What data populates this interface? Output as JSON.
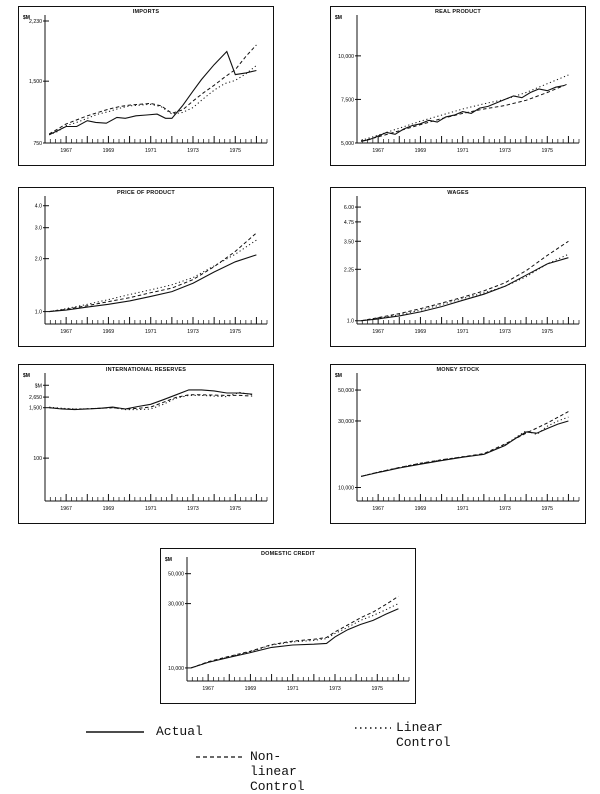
{
  "legend": {
    "actual": "Actual",
    "linear": "Linear Control",
    "nonlinear": "Non-linear Control"
  },
  "chart_data": [
    {
      "id": "imports",
      "type": "line",
      "title": "IMPORTS",
      "unit": "$M",
      "ylim": [
        750,
        2230
      ],
      "yticks": [
        750,
        1500,
        2230
      ],
      "ytick_labels": [
        "750",
        "1,500",
        "2,230"
      ],
      "xlim": [
        1966,
        1976.5
      ],
      "xticks": [
        1967,
        1969,
        1971,
        1973,
        1975
      ],
      "xtick_labels": [
        "1967",
        "1969",
        "1971",
        "1973",
        "1975"
      ],
      "series": [
        {
          "name": "Actual",
          "x": [
            1966.2,
            1966.6,
            1967,
            1967.5,
            1968,
            1968.4,
            1968.9,
            1969.4,
            1969.8,
            1970.3,
            1970.8,
            1971.3,
            1971.7,
            1972,
            1972.5,
            1973,
            1973.4,
            1974,
            1974.6,
            1975,
            1975.5,
            1976
          ],
          "y": [
            850,
            900,
            950,
            950,
            1020,
            1000,
            990,
            1060,
            1050,
            1080,
            1090,
            1100,
            1050,
            1050,
            1200,
            1380,
            1520,
            1700,
            1860,
            1580,
            1600,
            1630
          ]
        },
        {
          "name": "Linear Control",
          "x": [
            1966.2,
            1966.6,
            1967,
            1967.5,
            1968,
            1968.5,
            1969,
            1969.5,
            1970,
            1970.5,
            1971,
            1971.5,
            1972,
            1972.5,
            1973,
            1973.5,
            1974,
            1974.5,
            1975,
            1975.5,
            1976
          ],
          "y": [
            850,
            890,
            960,
            1000,
            1050,
            1100,
            1130,
            1170,
            1200,
            1210,
            1220,
            1190,
            1100,
            1120,
            1180,
            1290,
            1390,
            1470,
            1510,
            1590,
            1690
          ]
        },
        {
          "name": "Non-linear Control",
          "x": [
            1966.2,
            1966.6,
            1967,
            1967.5,
            1968,
            1968.5,
            1969,
            1969.5,
            1970,
            1970.5,
            1971,
            1971.5,
            1972,
            1972.5,
            1973,
            1973.5,
            1974,
            1974.5,
            1975,
            1975.5,
            1976
          ],
          "y": [
            860,
            920,
            980,
            1030,
            1080,
            1120,
            1160,
            1190,
            1210,
            1220,
            1230,
            1200,
            1110,
            1150,
            1260,
            1360,
            1450,
            1550,
            1640,
            1800,
            1940
          ]
        }
      ]
    },
    {
      "id": "real_product",
      "type": "line",
      "title": "REAL PRODUCT",
      "unit": "$M",
      "ylim": [
        5000,
        12000
      ],
      "yticks": [
        5000,
        7500,
        10000
      ],
      "ytick_labels": [
        "5,000",
        "7,500",
        "10,000"
      ],
      "xlim": [
        1966,
        1976.5
      ],
      "xticks": [
        1967,
        1969,
        1971,
        1973,
        1975
      ],
      "xtick_labels": [
        "1967",
        "1969",
        "1971",
        "1973",
        "1975"
      ],
      "series": [
        {
          "name": "Actual",
          "x": [
            1966.2,
            1966.6,
            1967,
            1967.4,
            1967.8,
            1968.2,
            1968.6,
            1969,
            1969.4,
            1969.8,
            1970.2,
            1970.6,
            1971,
            1971.4,
            1971.8,
            1972.2,
            1972.6,
            1973,
            1973.4,
            1973.8,
            1974.2,
            1974.6,
            1975,
            1975.4,
            1975.8
          ],
          "y": [
            5100,
            5200,
            5400,
            5600,
            5500,
            5800,
            6000,
            6100,
            6300,
            6200,
            6500,
            6600,
            6800,
            6700,
            7000,
            7100,
            7300,
            7500,
            7700,
            7600,
            7900,
            8100,
            8000,
            8200,
            8300
          ]
        },
        {
          "name": "Linear Control",
          "x": [
            1966.2,
            1967,
            1968,
            1969,
            1970,
            1971,
            1972,
            1973,
            1974,
            1975,
            1976
          ],
          "y": [
            5150,
            5450,
            5850,
            6250,
            6600,
            6950,
            7250,
            7500,
            7900,
            8400,
            8900
          ]
        },
        {
          "name": "Non-linear Control",
          "x": [
            1966.2,
            1967,
            1968,
            1969,
            1970,
            1971,
            1972,
            1973,
            1974,
            1975,
            1976
          ],
          "y": [
            5100,
            5350,
            5700,
            6050,
            6400,
            6700,
            6950,
            7150,
            7450,
            7900,
            8400
          ]
        }
      ]
    },
    {
      "id": "price_of_product",
      "type": "line",
      "title": "PRICE OF PRODUCT",
      "unit": "",
      "ylim": [
        0.85,
        4.2
      ],
      "yticks": [
        1.0,
        2.0,
        3.0,
        4.0
      ],
      "ytick_labels": [
        "1.0",
        "2.0",
        "3.0",
        "4.0"
      ],
      "log": true,
      "xlim": [
        1966,
        1976.5
      ],
      "xticks": [
        1967,
        1969,
        1971,
        1973,
        1975
      ],
      "xtick_labels": [
        "1967",
        "1969",
        "1971",
        "1973",
        "1975"
      ],
      "series": [
        {
          "name": "Actual",
          "x": [
            1966.2,
            1967,
            1968,
            1969,
            1970,
            1971,
            1972,
            1973,
            1974,
            1975,
            1976
          ],
          "y": [
            1.0,
            1.02,
            1.06,
            1.1,
            1.15,
            1.22,
            1.3,
            1.45,
            1.68,
            1.92,
            2.1
          ]
        },
        {
          "name": "Linear Control",
          "x": [
            1966.2,
            1967,
            1968,
            1969,
            1970,
            1971,
            1972,
            1973,
            1974,
            1975,
            1976
          ],
          "y": [
            1.0,
            1.04,
            1.1,
            1.17,
            1.25,
            1.33,
            1.42,
            1.56,
            1.82,
            2.12,
            2.55
          ]
        },
        {
          "name": "Non-linear Control",
          "x": [
            1966.2,
            1967,
            1968,
            1969,
            1970,
            1971,
            1972,
            1973,
            1974,
            1975,
            1976
          ],
          "y": [
            1.0,
            1.03,
            1.08,
            1.14,
            1.2,
            1.28,
            1.36,
            1.52,
            1.8,
            2.2,
            2.8
          ]
        }
      ]
    },
    {
      "id": "wages",
      "type": "line",
      "title": "WAGES",
      "unit": "",
      "ylim": [
        0.95,
        6.5
      ],
      "yticks": [
        1.0,
        2.25,
        3.5,
        4.75,
        6.0
      ],
      "ytick_labels": [
        "1.0",
        "2.25",
        "3.50",
        "4.75",
        "6.00"
      ],
      "log": true,
      "xlim": [
        1966,
        1976.5
      ],
      "xticks": [
        1967,
        1969,
        1971,
        1973,
        1975
      ],
      "xtick_labels": [
        "1967",
        "1969",
        "1971",
        "1973",
        "1975"
      ],
      "series": [
        {
          "name": "Actual",
          "x": [
            1966.2,
            1967,
            1968,
            1969,
            1970,
            1971,
            1972,
            1973,
            1974,
            1975,
            1976
          ],
          "y": [
            1.0,
            1.03,
            1.08,
            1.15,
            1.25,
            1.38,
            1.52,
            1.72,
            2.05,
            2.45,
            2.7
          ]
        },
        {
          "name": "Linear Control",
          "x": [
            1966.2,
            1967,
            1968,
            1969,
            1970,
            1971,
            1972,
            1973,
            1974,
            1975,
            1976
          ],
          "y": [
            1.0,
            1.04,
            1.1,
            1.18,
            1.29,
            1.42,
            1.55,
            1.72,
            2.0,
            2.45,
            2.85
          ]
        },
        {
          "name": "Non-linear Control",
          "x": [
            1966.2,
            1967,
            1968,
            1969,
            1970,
            1971,
            1972,
            1973,
            1974,
            1975,
            1976
          ],
          "y": [
            1.0,
            1.05,
            1.12,
            1.21,
            1.32,
            1.45,
            1.6,
            1.82,
            2.2,
            2.8,
            3.5
          ]
        }
      ]
    },
    {
      "id": "international_reserves",
      "type": "line",
      "title": "INTERNATIONAL RESERVES",
      "unit": "$M",
      "ylim": [
        10,
        7000
      ],
      "yticks": [
        100,
        1500,
        2650,
        5000
      ],
      "ytick_labels": [
        "100",
        "1,500",
        "2,650",
        "$M"
      ],
      "log": true,
      "xlim": [
        1966,
        1976.5
      ],
      "xticks": [
        1967,
        1969,
        1971,
        1973,
        1975
      ],
      "xtick_labels": [
        "1967",
        "1969",
        "1971",
        "1973",
        "1975"
      ],
      "series": [
        {
          "name": "Actual",
          "x": [
            1966.2,
            1966.8,
            1967.4,
            1968,
            1968.6,
            1969.2,
            1969.8,
            1970.4,
            1971,
            1971.6,
            1972.2,
            1972.8,
            1973.4,
            1974,
            1974.6,
            1975.2,
            1975.8
          ],
          "y": [
            1500,
            1400,
            1350,
            1400,
            1450,
            1550,
            1400,
            1600,
            1800,
            2300,
            3000,
            3900,
            3900,
            3700,
            3300,
            3300,
            3100
          ]
        },
        {
          "name": "Linear Control",
          "x": [
            1966.2,
            1966.8,
            1967.4,
            1968,
            1968.6,
            1969.2,
            1969.8,
            1970.4,
            1971,
            1971.6,
            1972.2,
            1972.8,
            1973.4,
            1974,
            1974.6,
            1975.2,
            1975.8
          ],
          "y": [
            1550,
            1450,
            1400,
            1420,
            1450,
            1500,
            1350,
            1350,
            1400,
            1800,
            2500,
            2900,
            2900,
            2800,
            2700,
            3400,
            3000
          ]
        },
        {
          "name": "Non-linear Control",
          "x": [
            1966.2,
            1966.8,
            1967.4,
            1968,
            1968.6,
            1969.2,
            1969.8,
            1970.4,
            1971,
            1971.6,
            1972.2,
            1972.8,
            1973.4,
            1974,
            1974.6,
            1975.2,
            1975.8
          ],
          "y": [
            1500,
            1420,
            1380,
            1410,
            1450,
            1500,
            1400,
            1450,
            1550,
            2000,
            2600,
            3000,
            3000,
            2950,
            2900,
            2900,
            2800
          ]
        }
      ]
    },
    {
      "id": "money_stock",
      "type": "line",
      "title": "MONEY STOCK",
      "unit": "$M",
      "ylim": [
        8000,
        60000
      ],
      "yticks": [
        10000,
        30000,
        50000
      ],
      "ytick_labels": [
        "10,000",
        "30,000",
        "50,000"
      ],
      "log": true,
      "xlim": [
        1966,
        1976.5
      ],
      "xticks": [
        1967,
        1969,
        1971,
        1973,
        1975
      ],
      "xtick_labels": [
        "1967",
        "1969",
        "1971",
        "1973",
        "1975"
      ],
      "series": [
        {
          "name": "Actual",
          "x": [
            1966.2,
            1967,
            1968,
            1969,
            1970,
            1971,
            1972,
            1973,
            1973.5,
            1974,
            1974.5,
            1975,
            1975.5,
            1976
          ],
          "y": [
            12000,
            12800,
            13800,
            14700,
            15600,
            16500,
            17300,
            20000,
            22500,
            25000,
            24500,
            26500,
            28500,
            30000
          ]
        },
        {
          "name": "Linear Control",
          "x": [
            1966.2,
            1967,
            1968,
            1969,
            1970,
            1971,
            1972,
            1973,
            1973.5,
            1974,
            1974.5,
            1975,
            1975.5,
            1976
          ],
          "y": [
            12000,
            12900,
            13900,
            14900,
            15800,
            16600,
            17300,
            20200,
            22800,
            25500,
            24000,
            27500,
            30000,
            32000
          ]
        },
        {
          "name": "Non-linear Control",
          "x": [
            1966.2,
            1967,
            1968,
            1969,
            1970,
            1971,
            1972,
            1973,
            1974,
            1975,
            1976
          ],
          "y": [
            12000,
            12900,
            13900,
            14900,
            15800,
            16600,
            17500,
            20500,
            24500,
            29000,
            35000
          ]
        }
      ]
    },
    {
      "id": "domestic_credit",
      "type": "line",
      "title": "DOMESTIC CREDIT",
      "unit": "$M",
      "ylim": [
        8000,
        60000
      ],
      "yticks": [
        10000,
        30000,
        50000
      ],
      "ytick_labels": [
        "10,000",
        "30,000",
        "50,000"
      ],
      "log": true,
      "xlim": [
        1966,
        1976.5
      ],
      "xticks": [
        1967,
        1969,
        1971,
        1973,
        1975
      ],
      "xtick_labels": [
        "1967",
        "1969",
        "1971",
        "1973",
        "1975"
      ],
      "series": [
        {
          "name": "Actual",
          "x": [
            1966.2,
            1967,
            1968,
            1969,
            1970,
            1971,
            1972,
            1972.6,
            1973,
            1973.6,
            1974.2,
            1974.8,
            1975.4,
            1976
          ],
          "y": [
            10000,
            11000,
            12000,
            13000,
            14200,
            14800,
            15000,
            15200,
            17000,
            19200,
            21000,
            22500,
            25000,
            27500
          ]
        },
        {
          "name": "Linear Control",
          "x": [
            1966.2,
            1967,
            1968,
            1969,
            1970,
            1971,
            1972,
            1972.6,
            1973,
            1973.6,
            1974.2,
            1974.8,
            1975.4,
            1976
          ],
          "y": [
            10000,
            11000,
            12100,
            13200,
            14800,
            15600,
            16000,
            16500,
            18000,
            20000,
            22500,
            24500,
            27000,
            30000
          ]
        },
        {
          "name": "Non-linear Control",
          "x": [
            1966.2,
            1967,
            1968,
            1969,
            1970,
            1971,
            1972,
            1972.6,
            1973,
            1973.6,
            1974.2,
            1974.8,
            1975.4,
            1976
          ],
          "y": [
            10000,
            11100,
            12200,
            13300,
            14900,
            15800,
            16300,
            16800,
            18500,
            20800,
            23500,
            26000,
            29500,
            34000
          ]
        }
      ]
    }
  ]
}
